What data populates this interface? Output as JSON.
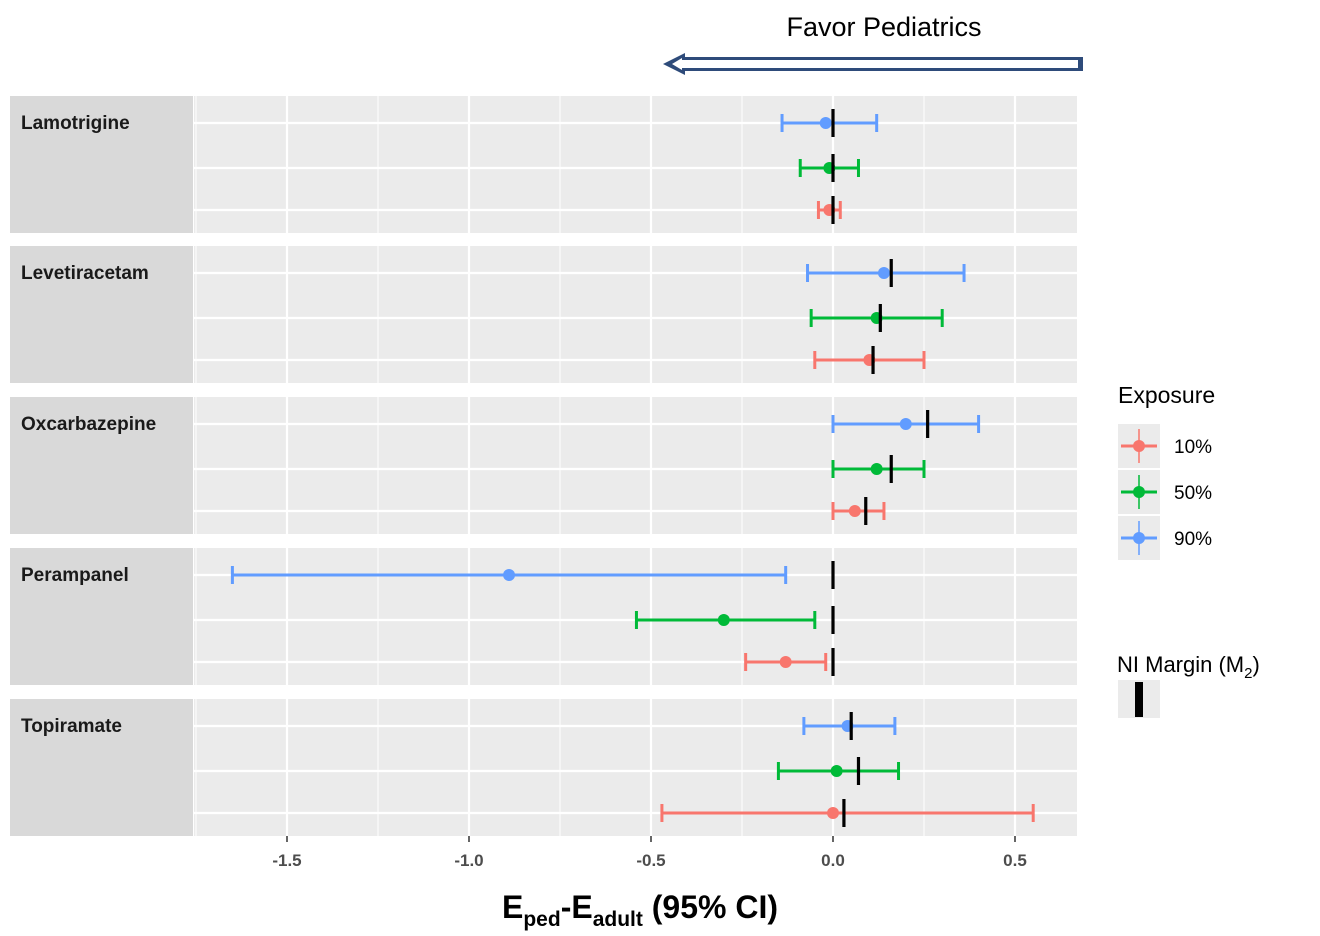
{
  "annotation": {
    "text": "Favor Pediatrics",
    "arrow_direction": "left"
  },
  "chart_data": {
    "type": "forest",
    "xlabel": {
      "main1": "E",
      "sub1": "ped",
      "mid": "-E",
      "sub2": "adult",
      "tail": " (95% CI)"
    },
    "xlim": [
      -1.78,
      0.66
    ],
    "x_ticks": [
      -1.5,
      -1.0,
      -0.5,
      0.0,
      0.5
    ],
    "x_tick_labels": [
      "-1.5",
      "-1.0",
      "-0.5",
      "0.0",
      "0.5"
    ],
    "grid": true,
    "legend": {
      "title": "Exposure",
      "position": "right",
      "entries": [
        {
          "label": "10%",
          "color": "#F8766D"
        },
        {
          "label": "50%",
          "color": "#00BA38"
        },
        {
          "label": "90%",
          "color": "#619CFF"
        }
      ]
    },
    "ni_legend": {
      "title_main": "NI Margin (M",
      "title_sub": "2",
      "title_close": ")",
      "color": "#000000"
    },
    "series_order": [
      "90%",
      "50%",
      "10%"
    ],
    "panels": [
      {
        "label": "Lamotrigine",
        "rows": [
          {
            "exposure": "90%",
            "estimate": -0.02,
            "lower": -0.14,
            "upper": 0.12,
            "ni_margin": 0.0
          },
          {
            "exposure": "50%",
            "estimate": -0.01,
            "lower": -0.09,
            "upper": 0.07,
            "ni_margin": 0.0
          },
          {
            "exposure": "10%",
            "estimate": -0.01,
            "lower": -0.04,
            "upper": 0.02,
            "ni_margin": 0.0
          }
        ]
      },
      {
        "label": "Levetiracetam",
        "rows": [
          {
            "exposure": "90%",
            "estimate": 0.14,
            "lower": -0.07,
            "upper": 0.36,
            "ni_margin": 0.16
          },
          {
            "exposure": "50%",
            "estimate": 0.12,
            "lower": -0.06,
            "upper": 0.3,
            "ni_margin": 0.13
          },
          {
            "exposure": "10%",
            "estimate": 0.1,
            "lower": -0.05,
            "upper": 0.25,
            "ni_margin": 0.11
          }
        ]
      },
      {
        "label": "Oxcarbazepine",
        "rows": [
          {
            "exposure": "90%",
            "estimate": 0.2,
            "lower": 0.0,
            "upper": 0.4,
            "ni_margin": 0.26
          },
          {
            "exposure": "50%",
            "estimate": 0.12,
            "lower": 0.0,
            "upper": 0.25,
            "ni_margin": 0.16
          },
          {
            "exposure": "10%",
            "estimate": 0.06,
            "lower": 0.0,
            "upper": 0.14,
            "ni_margin": 0.09
          }
        ]
      },
      {
        "label": "Perampanel",
        "rows": [
          {
            "exposure": "90%",
            "estimate": -0.89,
            "lower": -1.65,
            "upper": -0.13,
            "ni_margin": 0.0
          },
          {
            "exposure": "50%",
            "estimate": -0.3,
            "lower": -0.54,
            "upper": -0.05,
            "ni_margin": 0.0
          },
          {
            "exposure": "10%",
            "estimate": -0.13,
            "lower": -0.24,
            "upper": -0.02,
            "ni_margin": 0.0
          }
        ]
      },
      {
        "label": "Topiramate",
        "rows": [
          {
            "exposure": "90%",
            "estimate": 0.04,
            "lower": -0.08,
            "upper": 0.17,
            "ni_margin": 0.05
          },
          {
            "exposure": "50%",
            "estimate": 0.01,
            "lower": -0.15,
            "upper": 0.18,
            "ni_margin": 0.07
          },
          {
            "exposure": "10%",
            "estimate": 0.0,
            "lower": -0.47,
            "upper": 0.55,
            "ni_margin": 0.03
          }
        ]
      }
    ]
  }
}
